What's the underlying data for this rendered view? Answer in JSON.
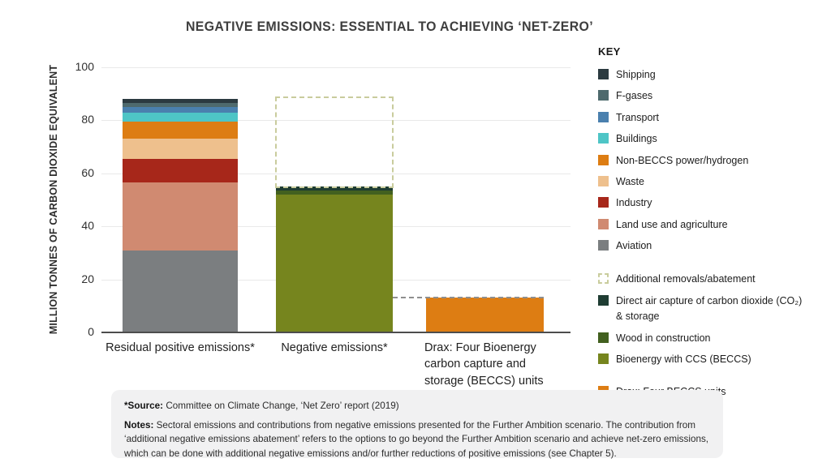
{
  "title": "NEGATIVE EMISSIONS: ESSENTIAL TO ACHIEVING ‘NET-ZERO’",
  "y_axis": {
    "label": "MILLION TONNES OF CARBON DIOXIDE EQUIVALENT",
    "ticks": [
      0,
      20,
      40,
      60,
      80,
      100
    ]
  },
  "key": {
    "heading": "KEY",
    "sector_items": [
      {
        "label": "Shipping",
        "color": "#2b3a40"
      },
      {
        "label": "F-gases",
        "color": "#4e6a6d"
      },
      {
        "label": "Transport",
        "color": "#4a80ae"
      },
      {
        "label": "Buildings",
        "color": "#4ec5c6"
      },
      {
        "label": "Non-BECCS power/hydrogen",
        "color": "#dd7d13"
      },
      {
        "label": "Waste",
        "color": "#eec08d"
      },
      {
        "label": "Industry",
        "color": "#a7271a"
      },
      {
        "label": "Land use and agriculture",
        "color": "#d08a71"
      },
      {
        "label": "Aviation",
        "color": "#7b7e80"
      }
    ],
    "removal_items": [
      {
        "label": "Additional removals/abatement",
        "color": "#ffffff",
        "swatch": "dashed",
        "border": "#c9cc9d"
      },
      {
        "label": "Direct air capture of carbon dioxide (CO₂) & storage",
        "color": "#1f3d33"
      },
      {
        "label": "Wood in construction",
        "color": "#42601f"
      },
      {
        "label": "Bioenergy with CCS (BECCS)",
        "color": "#76851e"
      }
    ],
    "drax_items": [
      {
        "label": "Drax: Four BECCS units",
        "color": "#dd7d13"
      }
    ]
  },
  "chart_data": {
    "type": "bar",
    "stacked": true,
    "title": "NEGATIVE EMISSIONS: ESSENTIAL TO ACHIEVING ‘NET-ZERO’",
    "ylabel": "MILLION TONNES OF CARBON DIOXIDE EQUIVALENT",
    "xlabel": "",
    "ylim": [
      0,
      100
    ],
    "yticks": [
      0,
      20,
      40,
      60,
      80,
      100
    ],
    "grid": "horizontal",
    "legend_position": "right",
    "categories": [
      "Residual positive emissions*",
      "Negative emissions*",
      "Drax: Four Bioenergy\ncarbon capture and\nstorage (BECCS) units"
    ],
    "bars": [
      {
        "category": "Residual positive emissions*",
        "total": 88,
        "segments": [
          {
            "name": "Aviation",
            "value": 31,
            "color": "#7b7e80"
          },
          {
            "name": "Land use and agriculture",
            "value": 25.5,
            "color": "#d08a71"
          },
          {
            "name": "Industry",
            "value": 9,
            "color": "#a7271a"
          },
          {
            "name": "Waste",
            "value": 7.5,
            "color": "#eec08d"
          },
          {
            "name": "Non-BECCS power/hydrogen",
            "value": 6.5,
            "color": "#dd7d13"
          },
          {
            "name": "Buildings",
            "value": 3.5,
            "color": "#4ec5c6"
          },
          {
            "name": "Transport",
            "value": 2,
            "color": "#4a80ae"
          },
          {
            "name": "F-gases",
            "value": 1.5,
            "color": "#4e6a6d"
          },
          {
            "name": "Shipping",
            "value": 1.5,
            "color": "#2b3a40"
          }
        ]
      },
      {
        "category": "Negative emissions*",
        "total": 55,
        "segments": [
          {
            "name": "Bioenergy with CCS (BECCS)",
            "value": 52,
            "color": "#76851e"
          },
          {
            "name": "Wood in construction",
            "value": 1.5,
            "color": "#42601f"
          },
          {
            "name": "Direct air capture of carbon dioxide (CO₂) & storage",
            "value": 1.5,
            "color": "#1f3d33"
          }
        ],
        "dashed_extension": {
          "name": "Additional removals/abatement",
          "from": 55,
          "to": 89,
          "border_color": "#c9cc9d"
        }
      },
      {
        "category": "Drax: Four Bioenergy carbon capture and storage (BECCS) units",
        "total": 13,
        "segments": [
          {
            "name": "Drax: Four BECCS units",
            "value": 13,
            "color": "#dd7d13"
          }
        ]
      }
    ],
    "reference_line": {
      "value": 13.4,
      "style": "dashed",
      "color": "#8f8f8f",
      "spans_categories": [
        "Negative emissions*",
        "Drax"
      ]
    }
  },
  "footnote": {
    "source_label": "*Source:",
    "source_text": " Committee on Climate Change, ‘Net Zero’ report (2019)",
    "notes_label": "Notes:",
    "notes_text": " Sectoral emissions and contributions from negative emissions presented for the Further Ambition scenario. The contribution from ‘additional negative emissions abatement’ refers to the options to go beyond the Further Ambition scenario and achieve net-zero emissions, which can be done with additional negative emissions and/or further reductions of positive emissions (see Chapter 5)."
  }
}
